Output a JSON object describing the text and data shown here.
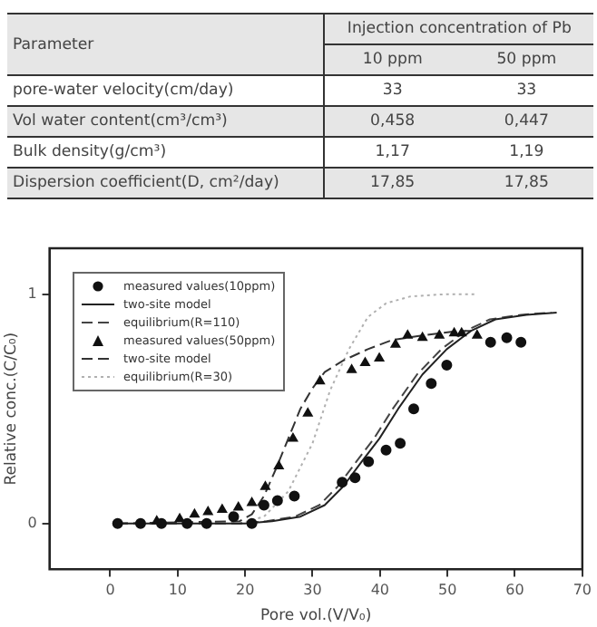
{
  "chart_data": [
    {
      "type": "other",
      "annotations": [
        "Parameter",
        "Injection concentration of Pb",
        "10 ppm",
        "50 ppm",
        "pore-water velocity(cm/day)",
        "33",
        "33",
        "Vol water content(cm³/cm³)",
        "0,458",
        "0,447",
        "Bulk density(g/cm³)",
        "1,17",
        "1,19",
        "Dispersion coefficient(D, cm²/day)",
        "17,85",
        "17,85"
      ]
    },
    {
      "type": "scatter",
      "xlabel": "Pore vol.(V/V₀)",
      "ylabel": "Relative conc.(C/C₀)",
      "xlim": [
        -9,
        70
      ],
      "xticks": [
        0,
        10,
        20,
        30,
        40,
        50,
        60,
        70
      ],
      "ylim": [
        -0.2,
        1.2
      ],
      "yticks": [
        0,
        1
      ],
      "grid": false,
      "legend": "top left",
      "series": [
        {
          "name": "measured values(10ppm)",
          "type": "scatter",
          "marker": "circle",
          "color": "#111111",
          "x": [
            1.1,
            4.5,
            7.6,
            11.4,
            14.3,
            18.3,
            21,
            22.8,
            24.8,
            27.3,
            34.4,
            36.3,
            38.3,
            40.9,
            43,
            45,
            47.6,
            49.9,
            56.4,
            58.8,
            60.9
          ],
          "values": [
            0,
            0,
            0,
            0,
            0,
            0.03,
            0,
            0.08,
            0.1,
            0.12,
            0.18,
            0.2,
            0.27,
            0.32,
            0.35,
            0.5,
            0.61,
            0.69,
            0.79,
            0.81,
            0.79
          ]
        },
        {
          "name": "two-site model",
          "type": "line",
          "line_style": "solid",
          "color": "#222222",
          "x": [
            1,
            20,
            24,
            28.2,
            31.8,
            34.5,
            37.3,
            39.9,
            42.7,
            46.3,
            49.9,
            53.5,
            57.1,
            61.7,
            66.2
          ],
          "values": [
            0,
            0,
            0.01,
            0.03,
            0.08,
            0.16,
            0.27,
            0.37,
            0.5,
            0.65,
            0.76,
            0.84,
            0.89,
            0.91,
            0.92
          ]
        },
        {
          "name": "equilibrium(R=110)",
          "type": "line",
          "line_style": "dashed",
          "color": "#444444",
          "x": [
            1,
            19.2,
            23.2,
            27.4,
            31,
            33.7,
            36.5,
            39.1,
            41.9,
            45.5,
            49.1,
            52.7,
            56.3,
            60.9,
            65.4
          ],
          "values": [
            0,
            0,
            0.01,
            0.03,
            0.08,
            0.16,
            0.27,
            0.37,
            0.5,
            0.65,
            0.76,
            0.84,
            0.89,
            0.91,
            0.92
          ]
        },
        {
          "name": "measured values(50ppm)",
          "type": "scatter",
          "marker": "triangle",
          "color": "#111111",
          "x": [
            6.9,
            10.3,
            12.5,
            14.5,
            16.6,
            19,
            21,
            23,
            25,
            27.1,
            29.3,
            31.1,
            35.8,
            37.8,
            39.9,
            42.3,
            44.1,
            46.3,
            48.8,
            51,
            52.1,
            54.4
          ],
          "values": [
            0.01,
            0.02,
            0.04,
            0.05,
            0.06,
            0.07,
            0.09,
            0.16,
            0.25,
            0.37,
            0.48,
            0.62,
            0.67,
            0.7,
            0.72,
            0.78,
            0.82,
            0.81,
            0.82,
            0.83,
            0.83,
            0.82
          ]
        },
        {
          "name": "two-site model",
          "type": "line",
          "line_style": "dashed",
          "color": "#333333",
          "x": [
            1,
            19.2,
            21,
            22.8,
            24.6,
            26.4,
            28.2,
            30,
            31.8,
            34.5,
            38.2,
            41.8,
            46.3,
            51.7,
            54.4
          ],
          "values": [
            0,
            0.01,
            0.04,
            0.12,
            0.24,
            0.37,
            0.5,
            0.59,
            0.66,
            0.71,
            0.76,
            0.8,
            0.82,
            0.84,
            0.84
          ]
        },
        {
          "name": "equilibrium(R=30)",
          "type": "line",
          "line_style": "dotted",
          "color": "#b0b0b0",
          "x": [
            19.2,
            22.8,
            26.4,
            30,
            32.6,
            35.4,
            38.2,
            40.9,
            44.5,
            49.9,
            54.4
          ],
          "values": [
            0,
            0.03,
            0.14,
            0.35,
            0.58,
            0.76,
            0.9,
            0.96,
            0.99,
            1.0,
            1.0
          ]
        }
      ]
    }
  ]
}
